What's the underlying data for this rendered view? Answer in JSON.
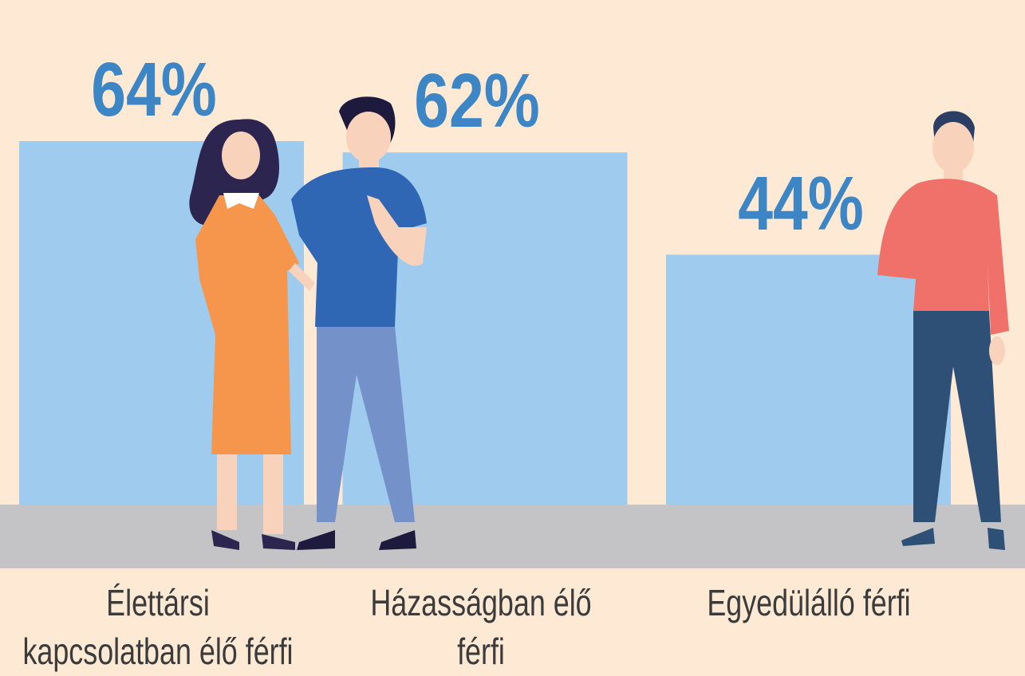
{
  "chart_data": {
    "type": "bar",
    "categories": [
      "Élettársi kapcsolatban élő férfi",
      "Házasságban élő férfi",
      "Egyedülálló férfi"
    ],
    "values": [
      64,
      62,
      44
    ],
    "value_labels": [
      "64%",
      "62%",
      "44%"
    ],
    "color": "#9ecbee"
  }
}
